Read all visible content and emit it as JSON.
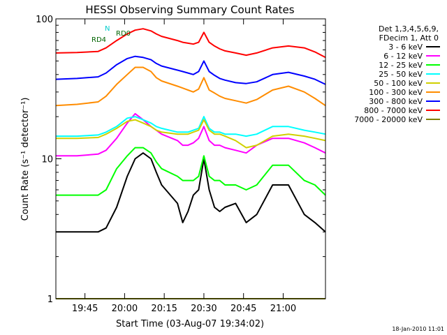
{
  "chart_data": {
    "type": "line",
    "title": "HESSI Observing Summary Count Rates",
    "xlabel": "Start Time (03-Aug-07 19:34:02)",
    "ylabel": "Count Rate (s⁻¹ detector⁻¹)",
    "y_scale": "log",
    "ylim": [
      1,
      100
    ],
    "x_unit": "minutes after 19:34:02",
    "xlim": [
      0,
      102
    ],
    "x_ticks": [
      {
        "value": 11,
        "label": "19:45"
      },
      {
        "value": 26,
        "label": "20:00"
      },
      {
        "value": 41,
        "label": "20:15"
      },
      {
        "value": 56,
        "label": "20:30"
      },
      {
        "value": 71,
        "label": "20:45"
      },
      {
        "value": 86,
        "label": "21:00"
      }
    ],
    "y_ticks": [
      {
        "value": 1,
        "label": "1"
      },
      {
        "value": 10,
        "label": "10"
      },
      {
        "value": 100,
        "label": "100"
      }
    ],
    "legend_header": [
      "Det 1,3,4,5,6,9,",
      "FDecim 1, Att 0"
    ],
    "legend_position": "right",
    "x": [
      0,
      8,
      16,
      19,
      23,
      27,
      30,
      33,
      36,
      38,
      40,
      46,
      48,
      50,
      52,
      54,
      56,
      58,
      60,
      62,
      64,
      68,
      72,
      76,
      82,
      88,
      94,
      98,
      102
    ],
    "series": [
      {
        "name": "3 - 6 keV",
        "color": "#000000",
        "values": [
          3.0,
          3.0,
          3.0,
          3.2,
          4.5,
          7.5,
          10.0,
          11.0,
          10.0,
          8.0,
          6.5,
          4.8,
          3.5,
          4.2,
          5.5,
          6.0,
          10.0,
          6.0,
          4.5,
          4.2,
          4.5,
          4.8,
          3.5,
          4.0,
          6.5,
          6.5,
          4.0,
          3.5,
          3.0
        ]
      },
      {
        "name": "6 - 12 keV",
        "color": "#ff00ff",
        "values": [
          10.5,
          10.5,
          10.8,
          11.5,
          14.0,
          18.0,
          21.0,
          19.0,
          17.0,
          16.0,
          15.0,
          13.5,
          12.5,
          12.5,
          13.0,
          14.0,
          17.0,
          13.5,
          12.5,
          12.5,
          12.0,
          11.5,
          11.0,
          12.5,
          14.0,
          14.0,
          13.0,
          12.0,
          11.0
        ]
      },
      {
        "name": "12 - 25 keV",
        "color": "#00ff00",
        "values": [
          5.5,
          5.5,
          5.5,
          6.0,
          8.5,
          10.5,
          12.0,
          12.0,
          11.0,
          9.5,
          8.5,
          7.5,
          7.0,
          7.0,
          7.0,
          7.5,
          10.5,
          7.5,
          7.0,
          7.0,
          6.5,
          6.5,
          6.0,
          6.5,
          9.0,
          9.0,
          7.0,
          6.5,
          5.5
        ]
      },
      {
        "name": "25 - 50 keV",
        "color": "#00ffff",
        "values": [
          14.5,
          14.5,
          14.8,
          15.5,
          17.0,
          19.5,
          20.0,
          19.0,
          18.0,
          17.0,
          16.5,
          15.5,
          15.5,
          15.5,
          16.0,
          16.5,
          20.0,
          16.5,
          15.5,
          15.5,
          15.0,
          15.0,
          14.5,
          15.0,
          17.0,
          17.0,
          16.0,
          15.5,
          15.0
        ]
      },
      {
        "name": "50 - 100 keV",
        "color": "#d0d000",
        "values": [
          14.0,
          14.0,
          14.2,
          15.0,
          16.5,
          18.5,
          19.0,
          18.0,
          17.0,
          16.0,
          15.5,
          15.0,
          15.0,
          15.0,
          15.5,
          16.0,
          19.0,
          16.0,
          15.0,
          15.0,
          14.5,
          13.5,
          12.0,
          12.5,
          14.5,
          15.0,
          14.5,
          14.0,
          13.5
        ]
      },
      {
        "name": "100 - 300 keV",
        "color": "#ff8c00",
        "values": [
          24.0,
          24.5,
          25.5,
          28.0,
          34.0,
          40.0,
          45.0,
          45.0,
          42.0,
          38.0,
          36.0,
          33.0,
          32.0,
          31.0,
          30.0,
          31.5,
          38.0,
          31.0,
          29.5,
          28.0,
          27.0,
          26.0,
          25.0,
          26.5,
          31.0,
          33.0,
          30.0,
          27.0,
          24.0
        ]
      },
      {
        "name": "300 - 800 keV",
        "color": "#0000ff",
        "values": [
          37.0,
          37.5,
          38.5,
          41.0,
          47.0,
          52.0,
          54.0,
          53.0,
          51.0,
          48.0,
          46.0,
          43.0,
          42.0,
          41.0,
          40.0,
          42.0,
          50.0,
          42.0,
          39.5,
          37.5,
          36.5,
          35.0,
          34.5,
          35.5,
          40.0,
          41.5,
          39.0,
          37.0,
          34.0
        ]
      },
      {
        "name": "800 - 7000 keV",
        "color": "#ff0000",
        "values": [
          57.0,
          57.5,
          58.5,
          62.0,
          70.0,
          78.0,
          83.0,
          85.0,
          82.0,
          78.0,
          75.0,
          70.0,
          68.0,
          67.0,
          66.0,
          68.0,
          80.0,
          68.0,
          64.0,
          61.0,
          59.0,
          57.0,
          55.0,
          57.0,
          62.0,
          64.0,
          62.0,
          58.0,
          53.0
        ]
      },
      {
        "name": "7000 - 20000 keV",
        "color": "#808000",
        "values": [
          1.0,
          1.0,
          1.0,
          1.0,
          1.0,
          1.0,
          1.0,
          1.0,
          1.0,
          1.0,
          1.0,
          1.0,
          1.0,
          1.0,
          1.0,
          1.0,
          1.0,
          1.0,
          1.0,
          1.0,
          1.0,
          1.0,
          1.0,
          1.0,
          1.0,
          1.0,
          1.0,
          1.0,
          1.0
        ]
      }
    ],
    "annotations": [
      "RD4",
      "RD0",
      "N"
    ],
    "footer_date": "18-Jan-2010 11:01"
  }
}
